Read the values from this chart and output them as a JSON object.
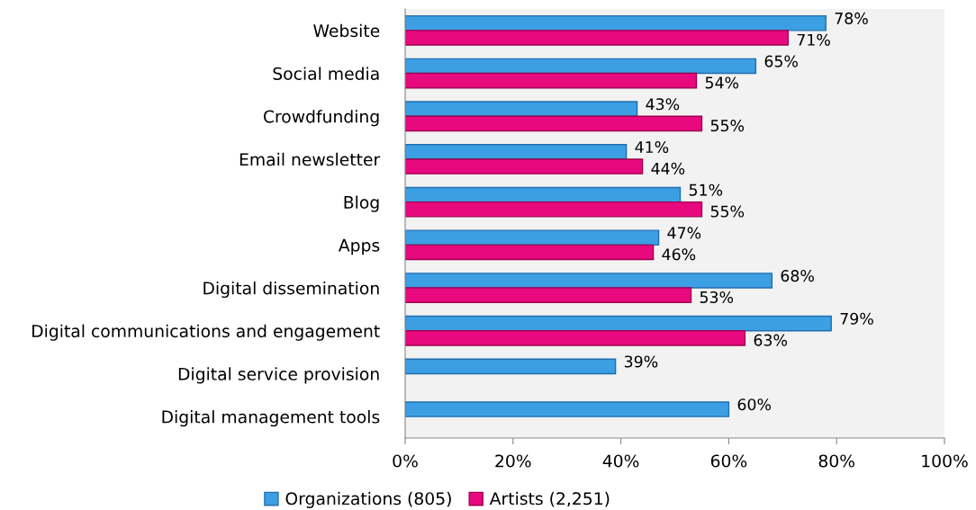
{
  "chart_data": {
    "type": "bar",
    "orientation": "horizontal",
    "categories": [
      "Website",
      "Social media",
      "Crowdfunding",
      "Email newsletter",
      "Blog",
      "Apps",
      "Digital dissemination",
      "Digital communications and engagement",
      "Digital service provision",
      "Digital management tools"
    ],
    "series": [
      {
        "name": "Organizations (805)",
        "color": "#3d9fe3",
        "values": [
          78,
          65,
          43,
          41,
          51,
          47,
          68,
          79,
          39,
          60
        ],
        "value_labels": [
          "78%",
          "65%",
          "43%",
          "41%",
          "51%",
          "47%",
          "68%",
          "79%",
          "39%",
          "60%"
        ]
      },
      {
        "name": "Artists (2,251)",
        "color": "#e8097f",
        "values": [
          71,
          54,
          55,
          44,
          55,
          46,
          53,
          63,
          null,
          null
        ],
        "value_labels": [
          "71%",
          "54%",
          "55%",
          "44%",
          "55%",
          "46%",
          "53%",
          "63%",
          null,
          null
        ]
      }
    ],
    "xlim": [
      0,
      100
    ],
    "xticks": [
      {
        "value": 0,
        "label": "0%"
      },
      {
        "value": 20,
        "label": "20%"
      },
      {
        "value": 40,
        "label": "40%"
      },
      {
        "value": 60,
        "label": "60%"
      },
      {
        "value": 80,
        "label": "80%"
      },
      {
        "value": 100,
        "label": "100%"
      }
    ],
    "grid": false,
    "legend": "bottom"
  }
}
